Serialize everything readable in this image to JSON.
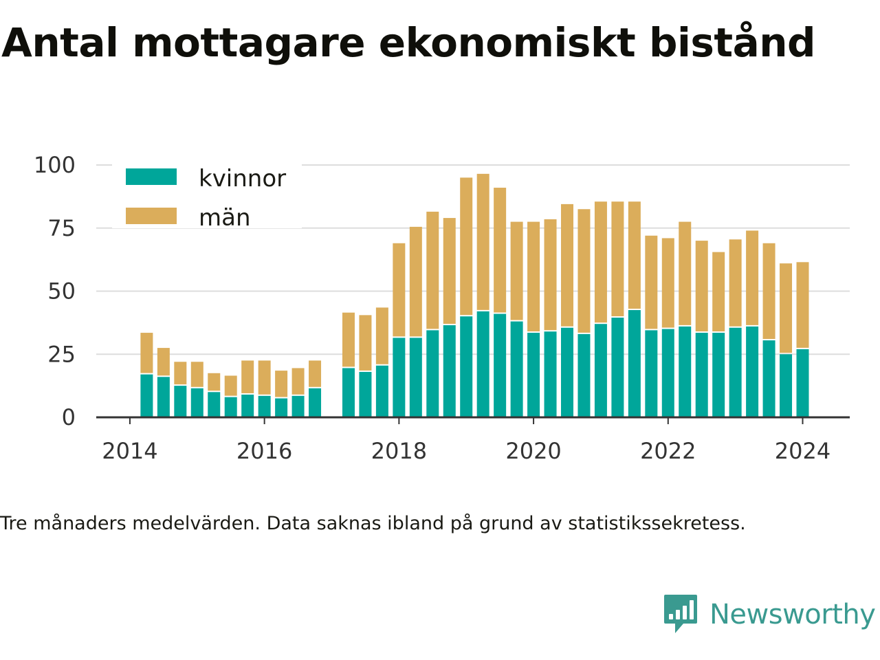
{
  "title": "Antal mottagare ekonomiskt bistånd",
  "caption": "Tre månaders medelvärden. Data saknas ibland på grund av statistikssekretess.",
  "brand": {
    "name": "Newsworthy",
    "icon": "newsworthy-logo-icon"
  },
  "colors": {
    "kvinnor": "#00a69a",
    "man": "#dbad5b",
    "grid": "#dddddd",
    "axis": "#333333"
  },
  "chart_data": {
    "type": "bar",
    "stacked": true,
    "x_axis": {
      "ticks": [
        2014,
        2016,
        2018,
        2020,
        2022,
        2024
      ],
      "range": [
        2013.5,
        2024.7
      ]
    },
    "y_axis": {
      "ticks": [
        0,
        25,
        50,
        75,
        100
      ],
      "range": [
        0,
        100
      ]
    },
    "grid": true,
    "legend": {
      "placement": "top-left",
      "entries": [
        "kvinnor",
        "män"
      ]
    },
    "x": [
      2014.25,
      2014.5,
      2014.75,
      2015.0,
      2015.25,
      2015.5,
      2015.75,
      2016.0,
      2016.25,
      2016.5,
      2016.75,
      2017.25,
      2017.5,
      2017.75,
      2018.0,
      2018.25,
      2018.5,
      2018.75,
      2019.0,
      2019.25,
      2019.5,
      2019.75,
      2020.0,
      2020.25,
      2020.5,
      2020.75,
      2021.0,
      2021.25,
      2021.5,
      2021.75,
      2022.0,
      2022.25,
      2022.5,
      2022.75,
      2023.0,
      2023.25,
      2023.5,
      2023.75,
      2024.0
    ],
    "series": [
      {
        "name": "kvinnor",
        "values": [
          17,
          16,
          12.5,
          11.5,
          10,
          8,
          9,
          8.5,
          7.5,
          8.5,
          11.5,
          19.5,
          18,
          20.5,
          31.5,
          31.5,
          34.5,
          36.5,
          40,
          42,
          41,
          38,
          33.5,
          34,
          35.5,
          33,
          37,
          39.5,
          42.5,
          34.5,
          35,
          36,
          33.5,
          33.5,
          35.5,
          36,
          30.5,
          25,
          27
        ]
      },
      {
        "name": "män",
        "values": [
          16.5,
          11.5,
          9.5,
          10.5,
          7.5,
          8.5,
          13.5,
          14,
          11,
          11,
          11,
          22,
          22.5,
          23,
          37.5,
          44,
          47,
          42.5,
          55,
          54.5,
          50,
          39.5,
          44,
          44.5,
          49,
          49.5,
          48.5,
          46,
          43,
          37.5,
          36,
          41.5,
          36.5,
          32,
          35,
          38,
          38.5,
          36,
          34.5
        ]
      }
    ]
  }
}
